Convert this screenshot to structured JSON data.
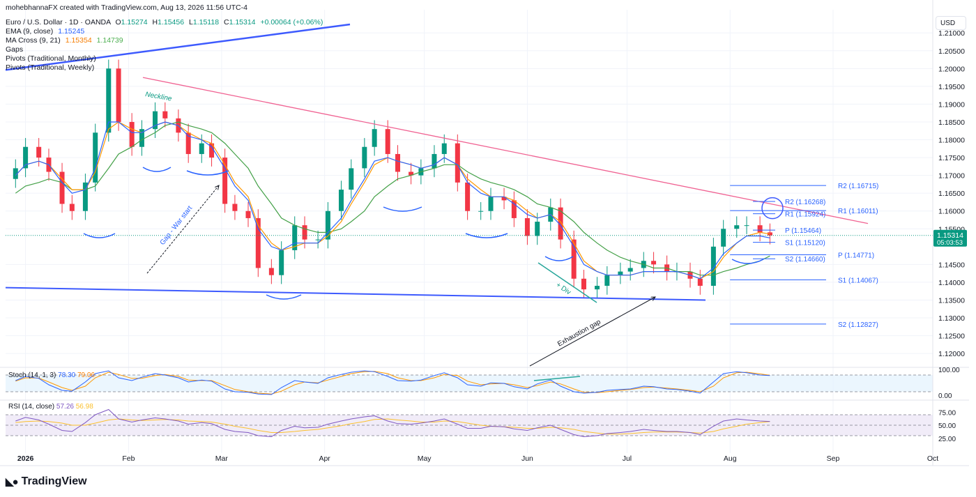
{
  "caption": "mohebhannaFX created with TradingView.com, Aug 13, 2026 11:56 UTC-4",
  "symbol": {
    "title": "Euro / U.S. Dollar · 1D · OANDA",
    "open_label": "O",
    "open": "1.15274",
    "high_label": "H",
    "high": "1.15456",
    "low_label": "L",
    "low": "1.15118",
    "close_label": "C",
    "close": "1.15314",
    "change": "+0.00064 (+0.06%)"
  },
  "indicators": {
    "ema_label": "EMA (9, close)",
    "ema_value": "1.15245",
    "ma_cross_label": "MA Cross (9, 21)",
    "ma_fast": "1.15354",
    "ma_slow": "1.14739",
    "gaps_label": "Gaps",
    "pivots_monthly_label": "Pivots (Traditional, Monthly)",
    "pivots_weekly_label": "Pivots (Traditional, Weekly)"
  },
  "currency_button": "USD",
  "price_badge": {
    "price": "1.15314",
    "countdown": "05:03:53"
  },
  "price_axis": [
    "1.21000",
    "1.20500",
    "1.20000",
    "1.19500",
    "1.19000",
    "1.18500",
    "1.18000",
    "1.17500",
    "1.17000",
    "1.16500",
    "1.16000",
    "1.15500",
    "1.14500",
    "1.14000",
    "1.13500",
    "1.13000",
    "1.12500",
    "1.12000"
  ],
  "price_axis_values": [
    1.21,
    1.205,
    1.2,
    1.195,
    1.19,
    1.185,
    1.18,
    1.175,
    1.17,
    1.165,
    1.16,
    1.155,
    1.145,
    1.14,
    1.135,
    1.13,
    1.125,
    1.12
  ],
  "time_axis": [
    "2026",
    "Feb",
    "Mar",
    "Apr",
    "May",
    "Jun",
    "Jul",
    "Aug",
    "Sep",
    "Oct"
  ],
  "stoch": {
    "label": "Stoch (14, 1, 3)",
    "k": "78.30",
    "d": "79.06",
    "axis": [
      "100.00",
      "0.00"
    ]
  },
  "rsi": {
    "label": "RSI (14, close)",
    "value": "57.26",
    "ma": "56.98",
    "axis": [
      "75.00",
      "50.00",
      "25.00"
    ]
  },
  "pivots": {
    "monthly": [
      {
        "label": "R2 (1.16715)",
        "value": 1.16715
      },
      {
        "label": "R1 (1.16011)",
        "value": 1.16011
      },
      {
        "label": "P (1.14771)",
        "value": 1.14771
      },
      {
        "label": "S1 (1.14067)",
        "value": 1.14067
      },
      {
        "label": "S2 (1.12827)",
        "value": 1.12827
      }
    ],
    "weekly": [
      {
        "label": "R2 (1.16268)",
        "value": 1.16268
      },
      {
        "label": "R1 (1.15924)",
        "value": 1.15924
      },
      {
        "label": "P (1.15464)",
        "value": 1.15464
      },
      {
        "label": "S1 (1.15120)",
        "value": 1.1512
      },
      {
        "label": "S2 (1.14660)",
        "value": 1.1466
      }
    ]
  },
  "annotations": {
    "neckline": "Neckline",
    "gap_war": "Gap - War start",
    "div": "+ Div",
    "exhaustion": "Exhaustion gap"
  },
  "footer_logo": "TradingView",
  "colors": {
    "up": "#089981",
    "down": "#f23645",
    "ema": "#2962ff",
    "ma_fast": "#ff9800",
    "ma_slow": "#43a047",
    "neckline": "#f06292",
    "trend": "#3d5afe",
    "stoch_k": "#2962ff",
    "stoch_d": "#ff9800",
    "rsi": "#7e57c2",
    "rsi_ma": "#fbc02d"
  },
  "chart_data": {
    "type": "candlestick",
    "title": "Euro / U.S. Dollar · 1D · OANDA",
    "ylim": [
      1.1165,
      1.2165
    ],
    "x_range": [
      "2025-12-26",
      "2026-10-01"
    ],
    "x": [
      "2025-12-29",
      "2026-01-01",
      "2026-01-05",
      "2026-01-08",
      "2026-01-12",
      "2026-01-15",
      "2026-01-19",
      "2026-01-22",
      "2026-01-26",
      "2026-01-29",
      "2026-02-02",
      "2026-02-05",
      "2026-02-09",
      "2026-02-12",
      "2026-02-16",
      "2026-02-19",
      "2026-02-23",
      "2026-02-26",
      "2026-03-02",
      "2026-03-05",
      "2026-03-09",
      "2026-03-12",
      "2026-03-16",
      "2026-03-19",
      "2026-03-23",
      "2026-03-26",
      "2026-03-30",
      "2026-04-02",
      "2026-04-06",
      "2026-04-09",
      "2026-04-13",
      "2026-04-16",
      "2026-04-20",
      "2026-04-23",
      "2026-04-27",
      "2026-04-30",
      "2026-05-04",
      "2026-05-07",
      "2026-05-11",
      "2026-05-14",
      "2026-05-18",
      "2026-05-21",
      "2026-05-25",
      "2026-05-28",
      "2026-06-01",
      "2026-06-04",
      "2026-06-08",
      "2026-06-11",
      "2026-06-15",
      "2026-06-18",
      "2026-06-22",
      "2026-06-25",
      "2026-06-29",
      "2026-07-02",
      "2026-07-06",
      "2026-07-09",
      "2026-07-13",
      "2026-07-16",
      "2026-07-20",
      "2026-07-23",
      "2026-07-27",
      "2026-07-30",
      "2026-08-03",
      "2026-08-06",
      "2026-08-10",
      "2026-08-13"
    ],
    "close": [
      1.172,
      1.178,
      1.175,
      1.171,
      1.162,
      1.16,
      1.168,
      1.182,
      1.2,
      1.185,
      1.178,
      1.183,
      1.188,
      1.186,
      1.182,
      1.176,
      1.179,
      1.175,
      1.162,
      1.16,
      1.158,
      1.144,
      1.142,
      1.149,
      1.156,
      1.152,
      1.152,
      1.16,
      1.166,
      1.172,
      1.178,
      1.183,
      1.176,
      1.171,
      1.17,
      1.172,
      1.176,
      1.179,
      1.168,
      1.16,
      1.16,
      1.164,
      1.163,
      1.158,
      1.153,
      1.157,
      1.161,
      1.152,
      1.141,
      1.138,
      1.139,
      1.142,
      1.143,
      1.144,
      1.146,
      1.145,
      1.143,
      1.143,
      1.141,
      1.139,
      1.15,
      1.155,
      1.156,
      1.156,
      1.154,
      1.15314
    ],
    "ema9": [
      1.17,
      1.173,
      1.174,
      1.173,
      1.168,
      1.165,
      1.166,
      1.172,
      1.185,
      1.185,
      1.182,
      1.182,
      1.184,
      1.185,
      1.184,
      1.181,
      1.18,
      1.178,
      1.172,
      1.167,
      1.163,
      1.155,
      1.15,
      1.149,
      1.151,
      1.151,
      1.151,
      1.154,
      1.158,
      1.163,
      1.169,
      1.174,
      1.175,
      1.174,
      1.173,
      1.172,
      1.173,
      1.175,
      1.173,
      1.168,
      1.165,
      1.164,
      1.164,
      1.162,
      1.159,
      1.158,
      1.159,
      1.156,
      1.15,
      1.145,
      1.143,
      1.142,
      1.142,
      1.142,
      1.143,
      1.143,
      1.143,
      1.143,
      1.142,
      1.141,
      1.144,
      1.148,
      1.151,
      1.153,
      1.153,
      1.15245
    ],
    "ma_fast": [
      1.17,
      1.173,
      1.174,
      1.173,
      1.169,
      1.166,
      1.166,
      1.171,
      1.183,
      1.185,
      1.183,
      1.182,
      1.184,
      1.185,
      1.184,
      1.182,
      1.18,
      1.179,
      1.173,
      1.168,
      1.164,
      1.156,
      1.151,
      1.149,
      1.15,
      1.151,
      1.151,
      1.153,
      1.157,
      1.162,
      1.168,
      1.173,
      1.175,
      1.174,
      1.173,
      1.172,
      1.173,
      1.175,
      1.173,
      1.169,
      1.166,
      1.164,
      1.164,
      1.163,
      1.16,
      1.158,
      1.159,
      1.157,
      1.151,
      1.146,
      1.143,
      1.142,
      1.142,
      1.142,
      1.143,
      1.143,
      1.143,
      1.143,
      1.142,
      1.141,
      1.143,
      1.147,
      1.151,
      1.153,
      1.154,
      1.15354
    ],
    "ma_slow": [
      1.165,
      1.167,
      1.168,
      1.169,
      1.168,
      1.166,
      1.166,
      1.167,
      1.172,
      1.176,
      1.178,
      1.18,
      1.182,
      1.184,
      1.185,
      1.184,
      1.183,
      1.182,
      1.179,
      1.176,
      1.172,
      1.167,
      1.162,
      1.158,
      1.156,
      1.155,
      1.154,
      1.154,
      1.155,
      1.157,
      1.16,
      1.164,
      1.167,
      1.169,
      1.17,
      1.171,
      1.172,
      1.173,
      1.173,
      1.171,
      1.169,
      1.168,
      1.167,
      1.166,
      1.164,
      1.162,
      1.161,
      1.16,
      1.157,
      1.154,
      1.151,
      1.149,
      1.147,
      1.146,
      1.145,
      1.144,
      1.144,
      1.143,
      1.143,
      1.142,
      1.142,
      1.143,
      1.144,
      1.145,
      1.146,
      1.14739
    ],
    "stoch_k": [
      60,
      75,
      68,
      45,
      25,
      22,
      55,
      85,
      95,
      70,
      60,
      72,
      85,
      80,
      70,
      55,
      62,
      58,
      30,
      20,
      18,
      12,
      10,
      35,
      60,
      55,
      50,
      70,
      82,
      90,
      95,
      92,
      75,
      60,
      58,
      62,
      78,
      88,
      70,
      45,
      40,
      52,
      50,
      38,
      30,
      48,
      62,
      40,
      20,
      15,
      18,
      25,
      28,
      30,
      40,
      38,
      30,
      28,
      22,
      15,
      55,
      85,
      92,
      88,
      80,
      78.3
    ],
    "stoch_d": [
      58,
      70,
      69,
      55,
      35,
      25,
      40,
      70,
      90,
      82,
      68,
      68,
      78,
      82,
      75,
      62,
      60,
      60,
      42,
      28,
      20,
      15,
      12,
      22,
      45,
      55,
      52,
      62,
      75,
      85,
      92,
      93,
      85,
      70,
      60,
      60,
      70,
      82,
      78,
      58,
      45,
      48,
      50,
      45,
      35,
      42,
      55,
      48,
      30,
      18,
      17,
      20,
      25,
      28,
      35,
      37,
      33,
      30,
      25,
      20,
      40,
      70,
      88,
      90,
      84,
      79.06
    ],
    "rsi": [
      58,
      65,
      60,
      52,
      40,
      38,
      55,
      70,
      80,
      62,
      56,
      60,
      64,
      62,
      58,
      52,
      55,
      53,
      42,
      38,
      36,
      30,
      28,
      40,
      48,
      45,
      46,
      52,
      58,
      62,
      66,
      68,
      58,
      53,
      52,
      54,
      58,
      62,
      52,
      44,
      44,
      48,
      47,
      43,
      40,
      45,
      50,
      42,
      32,
      28,
      30,
      34,
      36,
      38,
      42,
      40,
      38,
      38,
      36,
      32,
      48,
      58,
      62,
      60,
      58,
      57.26
    ],
    "rsi_ma": [
      55,
      57,
      58,
      57,
      54,
      50,
      50,
      54,
      60,
      62,
      60,
      59,
      60,
      61,
      60,
      58,
      57,
      56,
      52,
      48,
      44,
      40,
      36,
      36,
      38,
      40,
      42,
      45,
      49,
      53,
      57,
      61,
      62,
      60,
      58,
      56,
      56,
      58,
      57,
      54,
      50,
      48,
      47,
      46,
      44,
      44,
      46,
      45,
      42,
      38,
      35,
      33,
      33,
      34,
      36,
      37,
      37,
      37,
      36,
      35,
      38,
      43,
      48,
      52,
      55,
      56.98
    ]
  }
}
